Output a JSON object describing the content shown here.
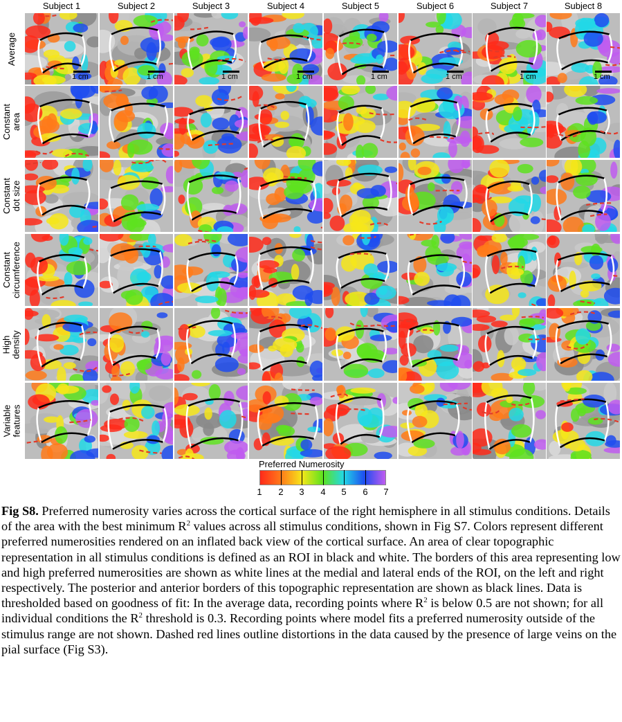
{
  "figure": {
    "subjects": [
      "Subject 1",
      "Subject 2",
      "Subject 3",
      "Subject 4",
      "Subject 5",
      "Subject 6",
      "Subject 7",
      "Subject 8"
    ],
    "conditions": [
      {
        "label_lines": [
          "Average"
        ]
      },
      {
        "label_lines": [
          "Constant",
          "area"
        ]
      },
      {
        "label_lines": [
          "Constant",
          "dot size"
        ]
      },
      {
        "label_lines": [
          "Constant",
          "circumference"
        ]
      },
      {
        "label_lines": [
          "High",
          "density"
        ]
      },
      {
        "label_lines": [
          "Variable",
          "features"
        ]
      }
    ],
    "scale_bar_label": "1 cm",
    "colorbar": {
      "title": "Preferred Numerosity",
      "ticks": [
        "1",
        "2",
        "3",
        "4",
        "5",
        "6",
        "7"
      ],
      "colors": [
        "#ff2a1a",
        "#ff7a1a",
        "#f6e61a",
        "#5ee21e",
        "#22d8e6",
        "#1e4cf0",
        "#c05cf0"
      ]
    }
  },
  "caption": {
    "label": "Fig S8.",
    "parts": [
      " Preferred numerosity varies across the cortical surface of the right hemisphere in all stimulus conditions. Details of the area with the best minimum R",
      "2",
      " values across all stimulus conditions, shown in Fig S7. Colors represent different preferred numerosities rendered on an inflated back view of the cortical surface. An area of clear topographic representation in all stimulus conditions is defined as an ROI in black and white. The borders of this area representing low and high preferred numerosities are shown as white lines at the medial and lateral ends of the ROI, on the left and right respectively. The posterior and anterior borders of this topographic representation are shown as black lines. Data is thresholded based on goodness of fit: In the average data, recording points where R",
      "2",
      " is below 0.5 are not shown; for all individual conditions the R",
      "2",
      " threshold is 0.3. Recording points where model fits a preferred numerosity outside of the stimulus range are not shown. Dashed red lines outline distortions in the data caused by the presence of large veins on the pial surface (Fig S3)."
    ]
  }
}
